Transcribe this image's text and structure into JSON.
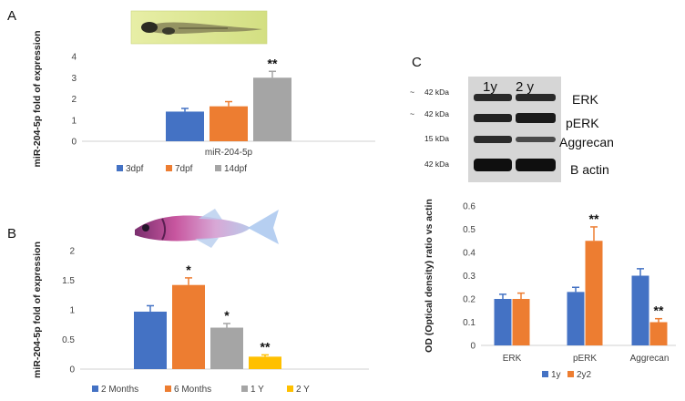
{
  "panels": {
    "a": {
      "letter": "A"
    },
    "b": {
      "letter": "B"
    },
    "c": {
      "letter": "C"
    }
  },
  "western_blot": {
    "lanes": [
      "1y",
      "2 y"
    ],
    "rows": [
      {
        "size": "42 kDa",
        "tilde": "~",
        "protein": "ERK"
      },
      {
        "size": "42 kDa",
        "tilde": "~",
        "protein": "pERK"
      },
      {
        "size": "15 kDa",
        "tilde": "",
        "protein": "Aggrecan"
      },
      {
        "size": "42 kDa",
        "tilde": "",
        "protein": "B actin"
      }
    ]
  },
  "colors": {
    "blue": "#4472C4",
    "orange": "#ED7D31",
    "gray": "#A5A5A5",
    "yellow": "#FFC000"
  },
  "chart_data": [
    {
      "id": "A",
      "type": "bar",
      "ylabel": "miR-204-5p fold of expression",
      "ylim": [
        0,
        4
      ],
      "yticks": [
        0,
        1,
        2,
        3,
        4
      ],
      "categories": [
        "miR-204-5p"
      ],
      "series": [
        {
          "name": "3dpf",
          "values": [
            1.4
          ],
          "errors": [
            0.15
          ],
          "sig": [
            ""
          ]
        },
        {
          "name": "7dpf",
          "values": [
            1.65
          ],
          "errors": [
            0.22
          ],
          "sig": [
            ""
          ]
        },
        {
          "name": "14dpf",
          "values": [
            3.0
          ],
          "errors": [
            0.3
          ],
          "sig": [
            "**"
          ]
        }
      ],
      "legend_position": "bottom",
      "grid": false
    },
    {
      "id": "B",
      "type": "bar",
      "ylabel": "miR-204-5p fold of expression",
      "ylim": [
        0,
        2
      ],
      "yticks": [
        0,
        0.5,
        1,
        1.5,
        2
      ],
      "categories": [
        ""
      ],
      "series": [
        {
          "name": "2 Months",
          "values": [
            0.97
          ],
          "errors": [
            0.1
          ],
          "sig": [
            ""
          ]
        },
        {
          "name": "6 Months",
          "values": [
            1.42
          ],
          "errors": [
            0.12
          ],
          "sig": [
            "*"
          ]
        },
        {
          "name": "1 Y",
          "values": [
            0.7
          ],
          "errors": [
            0.07
          ],
          "sig": [
            "*"
          ]
        },
        {
          "name": "2 Y",
          "values": [
            0.21
          ],
          "errors": [
            0.03
          ],
          "sig": [
            "**"
          ]
        }
      ],
      "legend_position": "bottom",
      "grid": false
    },
    {
      "id": "C",
      "type": "bar",
      "ylabel": "OD (Optical density) ratio vs actin",
      "ylim": [
        0,
        0.6
      ],
      "yticks": [
        0,
        0.1,
        0.2,
        0.3,
        0.4,
        0.5,
        0.6
      ],
      "categories": [
        "ERK",
        "pERK",
        "Aggrecan"
      ],
      "series": [
        {
          "name": "1y",
          "values": [
            0.2,
            0.23,
            0.3
          ],
          "errors": [
            0.02,
            0.02,
            0.03
          ],
          "sig": [
            "",
            "",
            ""
          ]
        },
        {
          "name": "2y2",
          "values": [
            0.2,
            0.45,
            0.1
          ],
          "errors": [
            0.025,
            0.06,
            0.015
          ],
          "sig": [
            "",
            "**",
            "**"
          ]
        }
      ],
      "legend_position": "bottom",
      "grid": false
    }
  ]
}
